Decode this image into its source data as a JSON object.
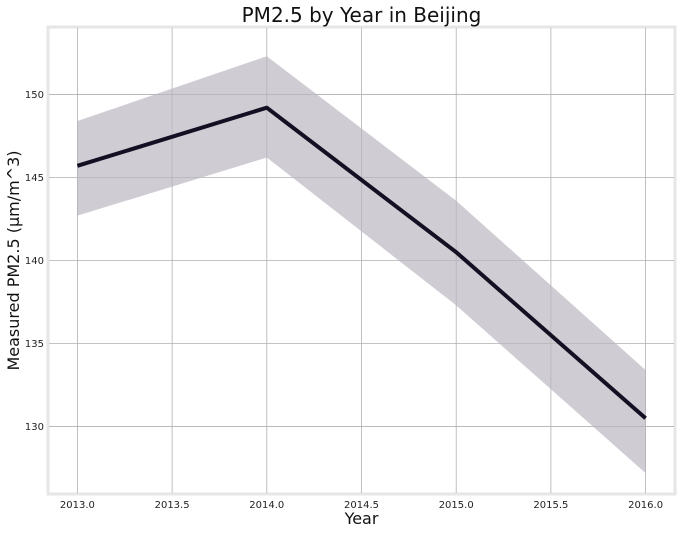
{
  "chart_data": {
    "type": "line",
    "title": "PM2.5 by Year in Beijing",
    "xlabel": "Year",
    "ylabel": "Measured PM2.5 (µm/m^3)",
    "xlim": [
      2012.85,
      2016.15
    ],
    "ylim": [
      126.0,
      154.0
    ],
    "x_ticks": [
      2013.0,
      2013.5,
      2014.0,
      2014.5,
      2015.0,
      2015.5,
      2016.0
    ],
    "x_tick_labels": [
      "2013.0",
      "2013.5",
      "2014.0",
      "2014.5",
      "2015.0",
      "2015.5",
      "2016.0"
    ],
    "y_ticks": [
      130,
      135,
      140,
      145,
      150
    ],
    "y_tick_labels": [
      "130",
      "135",
      "140",
      "145",
      "150"
    ],
    "grid": true,
    "series": [
      {
        "x": [
          2013,
          2014,
          2015,
          2016
        ],
        "values": [
          145.7,
          149.2,
          140.5,
          130.5
        ],
        "ci_lower": [
          142.7,
          146.2,
          137.3,
          127.2
        ],
        "ci_upper": [
          148.4,
          152.3,
          143.6,
          133.4
        ],
        "color": "#140f23",
        "band_color": "#b9b4be"
      }
    ],
    "frame_color": "#e6e6e6",
    "grid_color": "#b0b0b0"
  }
}
